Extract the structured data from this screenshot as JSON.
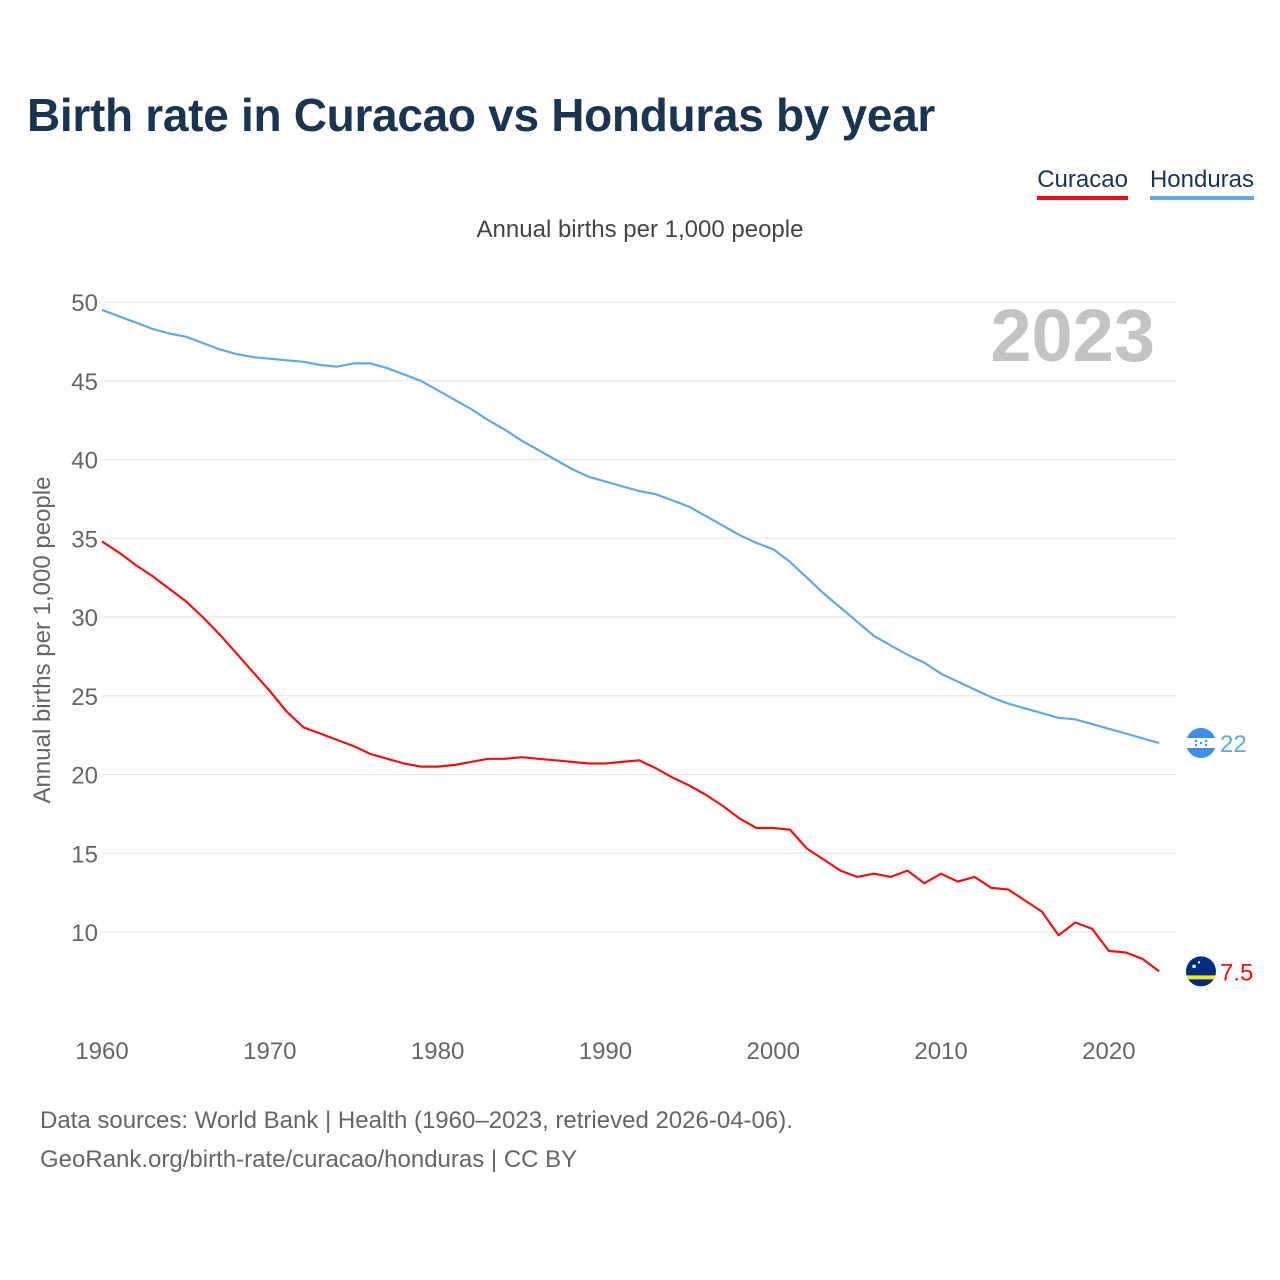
{
  "header": {
    "title": "Birth rate in Curacao vs Honduras by year",
    "subtitle": "Annual births per 1,000 people"
  },
  "legend": {
    "items": [
      "Curacao",
      "Honduras"
    ]
  },
  "footer": {
    "line1": "Data sources: World Bank | Health (1960–2023, retrieved 2026-04-06).",
    "line2": "GeoRank.org/birth-rate/curacao/honduras | CC BY"
  },
  "chart_data": {
    "type": "line",
    "title": "Birth rate in Curacao vs Honduras by year",
    "subtitle": "Annual births per 1,000 people",
    "xlabel": "",
    "ylabel": "Annual births per 1,000 people",
    "year_label": "2023",
    "xlim": [
      1960,
      2024
    ],
    "ylim": [
      5,
      52
    ],
    "xticks": [
      1960,
      1970,
      1980,
      1990,
      2000,
      2010,
      2020
    ],
    "yticks": [
      10,
      15,
      20,
      25,
      30,
      35,
      40,
      45,
      50
    ],
    "grid": true,
    "legend_position": "top-right",
    "x": [
      1960,
      1961,
      1962,
      1963,
      1964,
      1965,
      1966,
      1967,
      1968,
      1969,
      1970,
      1971,
      1972,
      1973,
      1974,
      1975,
      1976,
      1977,
      1978,
      1979,
      1980,
      1981,
      1982,
      1983,
      1984,
      1985,
      1986,
      1987,
      1988,
      1989,
      1990,
      1991,
      1992,
      1993,
      1994,
      1995,
      1996,
      1997,
      1998,
      1999,
      2000,
      2001,
      2002,
      2003,
      2004,
      2005,
      2006,
      2007,
      2008,
      2009,
      2010,
      2011,
      2012,
      2013,
      2014,
      2015,
      2016,
      2017,
      2018,
      2019,
      2020,
      2021,
      2022,
      2023
    ],
    "series": [
      {
        "name": "Curacao",
        "color": "#ee1111",
        "end_label": "7.5",
        "values": [
          34.8,
          34.1,
          33.3,
          32.6,
          31.8,
          31.0,
          30.0,
          28.9,
          27.7,
          26.5,
          25.3,
          24.0,
          23.0,
          22.6,
          22.2,
          21.8,
          21.3,
          21.0,
          20.7,
          20.5,
          20.5,
          20.6,
          20.8,
          21.0,
          21.0,
          21.1,
          21.0,
          20.9,
          20.8,
          20.7,
          20.7,
          20.8,
          20.9,
          20.4,
          19.8,
          19.3,
          18.7,
          18.0,
          17.2,
          16.6,
          16.6,
          16.5,
          15.3,
          14.6,
          13.9,
          13.5,
          13.7,
          13.5,
          13.9,
          13.1,
          13.7,
          13.2,
          13.5,
          12.8,
          12.7,
          12.0,
          11.3,
          9.8,
          10.6,
          10.2,
          8.8,
          8.7,
          8.3,
          7.5
        ]
      },
      {
        "name": "Honduras",
        "color": "#62a8e6",
        "end_label": "22",
        "values": [
          49.5,
          49.1,
          48.7,
          48.3,
          48.0,
          47.8,
          47.4,
          47.0,
          46.7,
          46.5,
          46.4,
          46.3,
          46.2,
          46.0,
          45.9,
          46.1,
          46.1,
          45.8,
          45.4,
          45.0,
          44.4,
          43.8,
          43.2,
          42.5,
          41.9,
          41.2,
          40.6,
          40.0,
          39.4,
          38.9,
          38.6,
          38.3,
          38.0,
          37.8,
          37.4,
          37.0,
          36.4,
          35.8,
          35.2,
          34.7,
          34.3,
          33.5,
          32.5,
          31.5,
          30.6,
          29.7,
          28.8,
          28.2,
          27.6,
          27.1,
          26.4,
          25.9,
          25.4,
          24.9,
          24.5,
          24.2,
          23.9,
          23.6,
          23.5,
          23.2,
          22.9,
          22.6,
          22.3,
          22.0
        ]
      }
    ]
  }
}
